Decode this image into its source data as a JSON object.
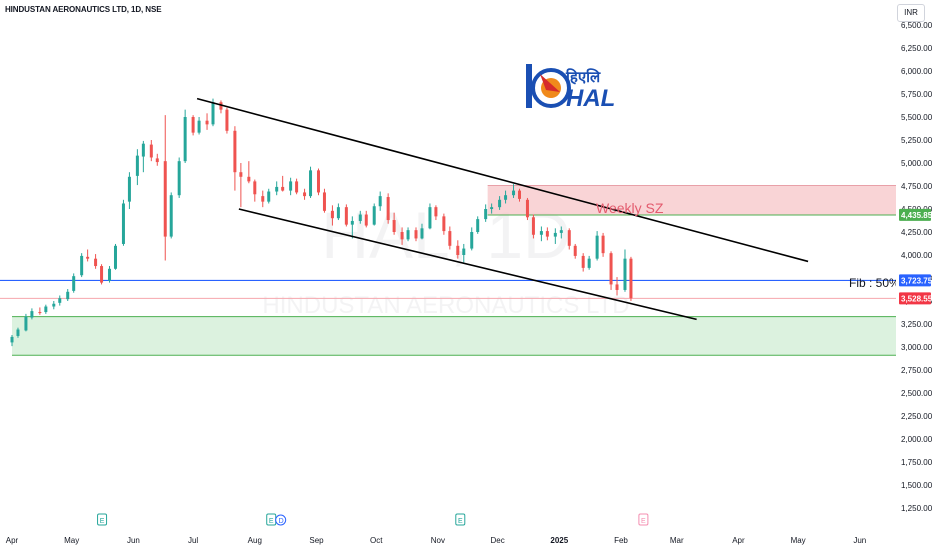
{
  "header": {
    "title": "HINDUSTAN AERONAUTICS LTD, 1D, NSE",
    "currency_button": "INR"
  },
  "watermark": {
    "ticker": "HAL, 1D",
    "name": "HINDUSTAN AERONAUTICS LTD"
  },
  "logo": {
    "hindi_text": "हिएलि",
    "text": "HAL",
    "colors": {
      "blue": "#1a4fb3",
      "orange": "#f08a1c",
      "red": "#d62b2b"
    }
  },
  "annotations": {
    "weekly_sz": "Weekly SZ",
    "fib": "Fib : 50%"
  },
  "colors": {
    "up": "#26a69a",
    "down": "#ef5350",
    "fib_line": "#2962ff",
    "supply_zone": "#f7c5c8",
    "demand_zone": "#d6f0d9",
    "zone_line_green": "#4caf50",
    "last_price": "#f23645"
  },
  "chart_data": {
    "type": "candlestick",
    "title": "HINDUSTAN AERONAUTICS LTD, 1D, NSE",
    "xlabel": "",
    "ylabel": "",
    "x_tick_labels": [
      "Apr",
      "May",
      "Jun",
      "Jul",
      "Aug",
      "Sep",
      "Oct",
      "Nov",
      "Dec",
      "2025",
      "Feb",
      "Mar",
      "Apr",
      "May",
      "Jun"
    ],
    "y_ticks": [
      "6,500.00",
      "6,250.00",
      "6,000.00",
      "5,750.00",
      "5,500.00",
      "5,250.00",
      "5,000.00",
      "4,750.00",
      "4,500.00",
      "4,250.00",
      "4,000.00",
      "3,750.00",
      "3,500.00",
      "3,250.00",
      "3,000.00",
      "2,750.00",
      "2,500.00",
      "2,250.00",
      "2,000.00",
      "1,750.00",
      "1,500.00",
      "1,250.00"
    ],
    "ylim": [
      1200,
      6550
    ],
    "price_labels": [
      {
        "label": "4,435.85",
        "value": 4435.85,
        "color": "#4caf50"
      },
      {
        "label": "3,723.75",
        "value": 3723.75,
        "color": "#2962ff"
      },
      {
        "label": "3,528.55",
        "value": 3528.55,
        "color": "#f23645"
      }
    ],
    "zones": [
      {
        "name": "Weekly SZ",
        "from_date": "2024-11-26",
        "to_date": "2025-07-01",
        "low": 4435,
        "high": 4755
      },
      {
        "name": "demand",
        "from_date": "2024-04-01",
        "to_date": "2025-07-01",
        "low": 2910,
        "high": 3330
      }
    ],
    "trendlines": [
      {
        "from": [
          "2024-07-03",
          5700
        ],
        "to": [
          "2025-05-06",
          3930
        ]
      },
      {
        "from": [
          "2024-07-24",
          4500
        ],
        "to": [
          "2025-03-11",
          3300
        ]
      }
    ],
    "hlines": [
      {
        "value": 3723.75,
        "label": "Fib : 50%"
      },
      {
        "value": 3528.55
      }
    ],
    "events": [
      {
        "date": "2024-05-16",
        "label": "E",
        "type": "earnings"
      },
      {
        "date": "2024-08-09",
        "label": "E",
        "type": "earnings"
      },
      {
        "date": "2024-08-14",
        "label": "D",
        "type": "dividend"
      },
      {
        "date": "2024-11-12",
        "label": "E",
        "type": "earnings"
      },
      {
        "date": "2025-02-12",
        "label": "E",
        "type": "earnings_upcoming"
      }
    ],
    "ohlc": [
      [
        "2024-04-01",
        3050,
        3130,
        3010,
        3110
      ],
      [
        "2024-04-04",
        3120,
        3210,
        3100,
        3190
      ],
      [
        "2024-04-08",
        3180,
        3360,
        3170,
        3330
      ],
      [
        "2024-04-11",
        3320,
        3420,
        3300,
        3390
      ],
      [
        "2024-04-15",
        3380,
        3430,
        3350,
        3370
      ],
      [
        "2024-04-18",
        3380,
        3460,
        3360,
        3440
      ],
      [
        "2024-04-22",
        3440,
        3500,
        3410,
        3470
      ],
      [
        "2024-04-25",
        3480,
        3560,
        3450,
        3530
      ],
      [
        "2024-04-29",
        3520,
        3630,
        3500,
        3600
      ],
      [
        "2024-05-02",
        3610,
        3800,
        3590,
        3770
      ],
      [
        "2024-05-06",
        3780,
        4020,
        3760,
        3990
      ],
      [
        "2024-05-09",
        3980,
        4060,
        3930,
        3960
      ],
      [
        "2024-05-13",
        3960,
        4010,
        3850,
        3880
      ],
      [
        "2024-05-16",
        3880,
        3900,
        3680,
        3700
      ],
      [
        "2024-05-20",
        3720,
        3880,
        3700,
        3850
      ],
      [
        "2024-05-23",
        3850,
        4120,
        3840,
        4100
      ],
      [
        "2024-05-27",
        4120,
        4600,
        4100,
        4560
      ],
      [
        "2024-05-30",
        4580,
        4900,
        4500,
        4850
      ],
      [
        "2024-06-03",
        4860,
        5150,
        4760,
        5080
      ],
      [
        "2024-06-06",
        5070,
        5240,
        4900,
        5210
      ],
      [
        "2024-06-10",
        5200,
        5250,
        5020,
        5060
      ],
      [
        "2024-06-13",
        5050,
        5100,
        4970,
        5010
      ],
      [
        "2024-06-17",
        5020,
        5520,
        3940,
        4200
      ],
      [
        "2024-06-20",
        4200,
        4680,
        4180,
        4650
      ],
      [
        "2024-06-24",
        4650,
        5060,
        4620,
        5020
      ],
      [
        "2024-06-27",
        5020,
        5580,
        5000,
        5500
      ],
      [
        "2024-07-01",
        5500,
        5520,
        5300,
        5330
      ],
      [
        "2024-07-04",
        5330,
        5500,
        5310,
        5460
      ],
      [
        "2024-07-08",
        5460,
        5540,
        5360,
        5420
      ],
      [
        "2024-07-11",
        5420,
        5700,
        5400,
        5660
      ],
      [
        "2024-07-15",
        5660,
        5680,
        5540,
        5580
      ],
      [
        "2024-07-18",
        5580,
        5600,
        5320,
        5350
      ],
      [
        "2024-07-22",
        5350,
        5400,
        4700,
        4900
      ],
      [
        "2024-07-25",
        4900,
        5000,
        4520,
        4850
      ],
      [
        "2024-07-29",
        4850,
        5020,
        4780,
        4800
      ],
      [
        "2024-08-01",
        4800,
        4820,
        4580,
        4660
      ],
      [
        "2024-08-05",
        4640,
        4700,
        4520,
        4580
      ],
      [
        "2024-08-08",
        4580,
        4720,
        4560,
        4690
      ],
      [
        "2024-08-12",
        4690,
        4800,
        4650,
        4740
      ],
      [
        "2024-08-15",
        4740,
        4860,
        4690,
        4700
      ],
      [
        "2024-08-19",
        4700,
        4840,
        4650,
        4800
      ],
      [
        "2024-08-22",
        4800,
        4830,
        4660,
        4680
      ],
      [
        "2024-08-26",
        4680,
        4720,
        4600,
        4640
      ],
      [
        "2024-08-29",
        4640,
        4960,
        4620,
        4920
      ],
      [
        "2024-09-02",
        4920,
        4940,
        4650,
        4680
      ],
      [
        "2024-09-05",
        4680,
        4720,
        4460,
        4480
      ],
      [
        "2024-09-09",
        4480,
        4540,
        4320,
        4400
      ],
      [
        "2024-09-12",
        4400,
        4560,
        4380,
        4520
      ],
      [
        "2024-09-16",
        4520,
        4550,
        4310,
        4330
      ],
      [
        "2024-09-19",
        4330,
        4420,
        4180,
        4370
      ],
      [
        "2024-09-23",
        4370,
        4480,
        4340,
        4440
      ],
      [
        "2024-09-26",
        4440,
        4480,
        4300,
        4320
      ],
      [
        "2024-09-30",
        4330,
        4560,
        4320,
        4530
      ],
      [
        "2024-10-03",
        4530,
        4690,
        4480,
        4640
      ],
      [
        "2024-10-07",
        4630,
        4670,
        4340,
        4380
      ],
      [
        "2024-10-10",
        4380,
        4460,
        4220,
        4250
      ],
      [
        "2024-10-14",
        4250,
        4300,
        4110,
        4170
      ],
      [
        "2024-10-17",
        4170,
        4300,
        4150,
        4270
      ],
      [
        "2024-10-21",
        4270,
        4300,
        4150,
        4180
      ],
      [
        "2024-10-24",
        4180,
        4340,
        4170,
        4290
      ],
      [
        "2024-10-28",
        4290,
        4560,
        4280,
        4520
      ],
      [
        "2024-10-31",
        4520,
        4540,
        4380,
        4420
      ],
      [
        "2024-11-04",
        4420,
        4450,
        4220,
        4260
      ],
      [
        "2024-11-07",
        4260,
        4310,
        4060,
        4100
      ],
      [
        "2024-11-11",
        4100,
        4160,
        3960,
        4000
      ],
      [
        "2024-11-14",
        4000,
        4120,
        3920,
        4070
      ],
      [
        "2024-11-18",
        4070,
        4300,
        4050,
        4250
      ],
      [
        "2024-11-21",
        4250,
        4420,
        4230,
        4390
      ],
      [
        "2024-11-25",
        4390,
        4550,
        4360,
        4500
      ],
      [
        "2024-11-28",
        4500,
        4560,
        4450,
        4520
      ],
      [
        "2024-12-02",
        4520,
        4640,
        4490,
        4600
      ],
      [
        "2024-12-05",
        4600,
        4700,
        4560,
        4650
      ],
      [
        "2024-12-09",
        4650,
        4770,
        4620,
        4700
      ],
      [
        "2024-12-12",
        4700,
        4720,
        4580,
        4610
      ],
      [
        "2024-12-16",
        4600,
        4620,
        4380,
        4410
      ],
      [
        "2024-12-19",
        4410,
        4440,
        4180,
        4220
      ],
      [
        "2024-12-23",
        4220,
        4310,
        4150,
        4260
      ],
      [
        "2024-12-26",
        4260,
        4300,
        4160,
        4200
      ],
      [
        "2024-12-30",
        4200,
        4290,
        4120,
        4240
      ],
      [
        "2025-01-02",
        4240,
        4310,
        4180,
        4270
      ],
      [
        "2025-01-06",
        4270,
        4290,
        4060,
        4100
      ],
      [
        "2025-01-09",
        4100,
        4120,
        3960,
        3990
      ],
      [
        "2025-01-13",
        3990,
        4020,
        3820,
        3860
      ],
      [
        "2025-01-16",
        3860,
        3990,
        3840,
        3960
      ],
      [
        "2025-01-20",
        3960,
        4260,
        3940,
        4210
      ],
      [
        "2025-01-23",
        4210,
        4240,
        3980,
        4020
      ],
      [
        "2025-01-27",
        4020,
        4040,
        3620,
        3680
      ],
      [
        "2025-01-30",
        3680,
        3760,
        3560,
        3620
      ],
      [
        "2025-02-03",
        3620,
        4060,
        3600,
        3960
      ],
      [
        "2025-02-06",
        3960,
        3980,
        3500,
        3530
      ]
    ]
  }
}
